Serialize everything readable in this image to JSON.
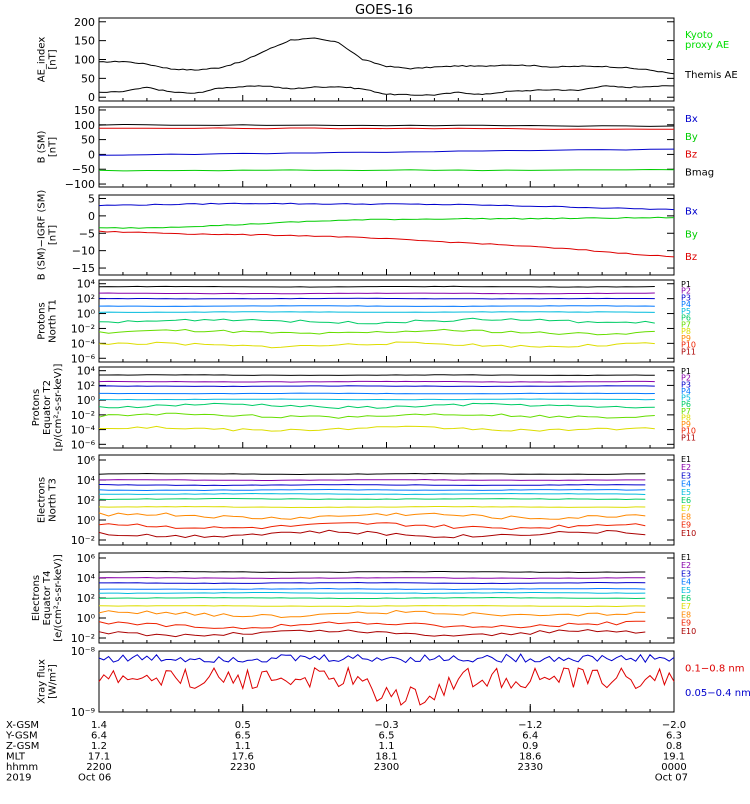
{
  "title": "GOES-16",
  "panels": [
    {
      "id": "ae",
      "ylabel": [
        "AE_index",
        "[nT]"
      ],
      "scale": "linear",
      "ylim": [
        -10,
        210
      ],
      "ticks": [
        {
          "v": 200,
          "t": "200"
        },
        {
          "v": 150,
          "t": "150"
        },
        {
          "v": 100,
          "t": "100"
        },
        {
          "v": 50,
          "t": "50"
        },
        {
          "v": 0,
          "t": "0"
        }
      ],
      "legend": [
        {
          "text": "Kyoto",
          "color": "#00dd00"
        },
        {
          "text": "proxy AE",
          "color": "#00dd00"
        },
        {
          "text": "Themis AE",
          "color": "#000000"
        }
      ]
    },
    {
      "id": "bsm",
      "ylabel": [
        "B (SM)",
        "[nT]"
      ],
      "scale": "linear",
      "ylim": [
        -110,
        160
      ],
      "ticks": [
        {
          "v": 150,
          "t": "150"
        },
        {
          "v": 100,
          "t": "100"
        },
        {
          "v": 50,
          "t": "50"
        },
        {
          "v": 0,
          "t": "0"
        },
        {
          "v": -50,
          "t": "−50"
        },
        {
          "v": -100,
          "t": "−100"
        }
      ],
      "legend": [
        {
          "text": "Bx",
          "color": "#0000cc"
        },
        {
          "text": "By",
          "color": "#00cc00"
        },
        {
          "text": "Bz",
          "color": "#dd0000"
        },
        {
          "text": "Bmag",
          "color": "#000000"
        }
      ]
    },
    {
      "id": "bigrf",
      "ylabel": [
        "B (SM)−IGRF (SM)",
        "[nT]"
      ],
      "scale": "linear",
      "ylim": [
        -17,
        6
      ],
      "ticks": [
        {
          "v": 5,
          "t": "5"
        },
        {
          "v": 0,
          "t": "0"
        },
        {
          "v": -5,
          "t": "−5"
        },
        {
          "v": -10,
          "t": "−10"
        },
        {
          "v": -15,
          "t": "−15"
        }
      ],
      "legend": [
        {
          "text": "Bx",
          "color": "#0000cc"
        },
        {
          "text": "By",
          "color": "#00cc00"
        },
        {
          "text": "Bz",
          "color": "#dd0000"
        }
      ]
    },
    {
      "id": "pnorth",
      "ylabel": [
        "Protons",
        "North T1"
      ],
      "scale": "log",
      "ylim": [
        -6.5,
        4.5
      ],
      "ticks": [
        {
          "v": 4,
          "t": "10⁴"
        },
        {
          "v": 2,
          "t": "10²"
        },
        {
          "v": 0,
          "t": "10⁰"
        },
        {
          "v": -2,
          "t": "10⁻²"
        },
        {
          "v": -4,
          "t": "10⁻⁴"
        },
        {
          "v": -6,
          "t": "10⁻⁶"
        }
      ],
      "legend": [
        {
          "text": "P1",
          "color": "#000000"
        },
        {
          "text": "P2",
          "color": "#8800aa"
        },
        {
          "text": "P3",
          "color": "#0000cc"
        },
        {
          "text": "P4",
          "color": "#0077ff"
        },
        {
          "text": "P5",
          "color": "#00bbdd"
        },
        {
          "text": "P6",
          "color": "#00cc66"
        },
        {
          "text": "P7",
          "color": "#66dd00"
        },
        {
          "text": "P8",
          "color": "#dddd00"
        },
        {
          "text": "P9",
          "color": "#ff8800"
        },
        {
          "text": "P10",
          "color": "#ee2200"
        },
        {
          "text": "P11",
          "color": "#aa0000"
        }
      ]
    },
    {
      "id": "peq",
      "ylabel": [
        "Protons",
        "Equator T2",
        "[p/(cm²-s-sr-keV)]"
      ],
      "scale": "log",
      "ylim": [
        -6.5,
        4.5
      ],
      "ticks": [
        {
          "v": 4,
          "t": "10⁴"
        },
        {
          "v": 2,
          "t": "10²"
        },
        {
          "v": 0,
          "t": "10⁰"
        },
        {
          "v": -2,
          "t": "10⁻²"
        },
        {
          "v": -4,
          "t": "10⁻⁴"
        },
        {
          "v": -6,
          "t": "10⁻⁶"
        }
      ],
      "legend": [
        {
          "text": "P1",
          "color": "#000000"
        },
        {
          "text": "P2",
          "color": "#8800aa"
        },
        {
          "text": "P3",
          "color": "#0000cc"
        },
        {
          "text": "P4",
          "color": "#0077ff"
        },
        {
          "text": "P5",
          "color": "#00bbdd"
        },
        {
          "text": "P6",
          "color": "#00cc66"
        },
        {
          "text": "P7",
          "color": "#66dd00"
        },
        {
          "text": "P8",
          "color": "#dddd00"
        },
        {
          "text": "P9",
          "color": "#ff8800"
        },
        {
          "text": "P10",
          "color": "#ee2200"
        },
        {
          "text": "P11",
          "color": "#aa0000"
        }
      ]
    },
    {
      "id": "enorth",
      "ylabel": [
        "Electrons",
        "North T3"
      ],
      "scale": "log",
      "ylim": [
        -2.5,
        6.5
      ],
      "ticks": [
        {
          "v": 6,
          "t": "10⁶"
        },
        {
          "v": 4,
          "t": "10⁴"
        },
        {
          "v": 2,
          "t": "10²"
        },
        {
          "v": 0,
          "t": "10⁰"
        },
        {
          "v": -2,
          "t": "10⁻²"
        }
      ],
      "legend": [
        {
          "text": "E1",
          "color": "#000000"
        },
        {
          "text": "E2",
          "color": "#8800aa"
        },
        {
          "text": "E3",
          "color": "#0000cc"
        },
        {
          "text": "E4",
          "color": "#0077ff"
        },
        {
          "text": "E5",
          "color": "#00bbdd"
        },
        {
          "text": "E6",
          "color": "#00cc66"
        },
        {
          "text": "E7",
          "color": "#dddd00"
        },
        {
          "text": "E8",
          "color": "#ff8800"
        },
        {
          "text": "E9",
          "color": "#ee2200"
        },
        {
          "text": "E10",
          "color": "#aa0000"
        }
      ]
    },
    {
      "id": "eeq",
      "ylabel": [
        "Electrons",
        "Equator T4",
        "[e/(cm²-s-sr-keV)]"
      ],
      "scale": "log",
      "ylim": [
        -2.5,
        6.5
      ],
      "ticks": [
        {
          "v": 6,
          "t": "10⁶"
        },
        {
          "v": 4,
          "t": "10⁴"
        },
        {
          "v": 2,
          "t": "10²"
        },
        {
          "v": 0,
          "t": "10⁰"
        },
        {
          "v": -2,
          "t": "10⁻²"
        }
      ],
      "legend": [
        {
          "text": "E1",
          "color": "#000000"
        },
        {
          "text": "E2",
          "color": "#8800aa"
        },
        {
          "text": "E3",
          "color": "#0000cc"
        },
        {
          "text": "E4",
          "color": "#0077ff"
        },
        {
          "text": "E5",
          "color": "#00bbdd"
        },
        {
          "text": "E6",
          "color": "#00cc66"
        },
        {
          "text": "E7",
          "color": "#dddd00"
        },
        {
          "text": "E8",
          "color": "#ff8800"
        },
        {
          "text": "E9",
          "color": "#ee2200"
        },
        {
          "text": "E10",
          "color": "#aa0000"
        }
      ]
    },
    {
      "id": "xray",
      "ylabel": [
        "Xray flux",
        "[W/m²]"
      ],
      "scale": "log",
      "ylim": [
        -9.0,
        -8.0
      ],
      "ticks": [
        {
          "v": -8,
          "t": "10⁻⁸"
        },
        {
          "v": -9,
          "t": "10⁻⁹"
        }
      ],
      "legend": [
        {
          "text": "0.1−0.8 nm",
          "color": "#dd0000"
        },
        {
          "text": "0.05−0.4 nm",
          "color": "#0000cc"
        }
      ]
    }
  ],
  "xaxis": {
    "labels": [
      "X-GSM",
      "Y-GSM",
      "Z-GSM",
      "MLT",
      "hhmm",
      "2019"
    ],
    "ticks": [
      {
        "t": 0,
        "vals": [
          "1.4",
          "6.4",
          "1.2",
          "17.1",
          "2200",
          "Oct 06"
        ]
      },
      {
        "t": 30,
        "vals": [
          "0.5",
          "6.5",
          "1.1",
          "17.6",
          "2230",
          ""
        ]
      },
      {
        "t": 60,
        "vals": [
          "−0.3",
          "6.5",
          "1.1",
          "18.1",
          "2300",
          ""
        ]
      },
      {
        "t": 90,
        "vals": [
          "−1.2",
          "6.4",
          "0.9",
          "18.6",
          "2330",
          ""
        ]
      },
      {
        "t": 120,
        "vals": [
          "−2.0",
          "6.3",
          "0.8",
          "19.1",
          "0000",
          "Oct 07"
        ]
      }
    ]
  },
  "chart_data": [
    {
      "type": "line",
      "title": "GOES-16",
      "ylabel": "AE_index [nT]",
      "x": [
        0,
        5,
        10,
        15,
        20,
        25,
        30,
        35,
        40,
        45,
        50,
        55,
        60,
        65,
        70,
        75,
        80,
        85,
        90,
        95,
        100,
        105,
        110,
        115,
        120
      ],
      "series": [
        {
          "name": "Themis AE",
          "values": [
            93,
            95,
            88,
            75,
            72,
            78,
            95,
            125,
            152,
            156,
            145,
            100,
            82,
            76,
            80,
            83,
            82,
            86,
            84,
            80,
            82,
            82,
            78,
            72,
            62
          ]
        },
        {
          "name": "Kyoto proxy AE",
          "values": [
            12,
            15,
            26,
            14,
            10,
            24,
            28,
            30,
            22,
            27,
            28,
            22,
            8,
            6,
            6,
            13,
            7,
            15,
            18,
            20,
            18,
            30,
            26,
            29,
            30
          ]
        }
      ],
      "ylim": [
        -10,
        210
      ]
    },
    {
      "type": "line",
      "ylabel": "B (SM) [nT]",
      "x": [
        0,
        30,
        60,
        90,
        120
      ],
      "series": [
        {
          "name": "Bmag",
          "values": [
            100,
            99,
            98,
            97,
            96
          ]
        },
        {
          "name": "Bz",
          "values": [
            88,
            88,
            88,
            86,
            85
          ]
        },
        {
          "name": "Bx",
          "values": [
            -3,
            3,
            8,
            13,
            18
          ]
        },
        {
          "name": "By",
          "values": [
            -55,
            -54,
            -53,
            -53,
            -52
          ]
        }
      ],
      "ylim": [
        -110,
        160
      ]
    },
    {
      "type": "line",
      "ylabel": "B (SM)−IGRF (SM) [nT]",
      "x": [
        0,
        10,
        20,
        30,
        40,
        50,
        60,
        70,
        80,
        90,
        100,
        110,
        120
      ],
      "series": [
        {
          "name": "Bx",
          "values": [
            3,
            3.2,
            3.4,
            3.6,
            3.5,
            3.4,
            3.4,
            3.3,
            3.1,
            2.8,
            2.5,
            2.1,
            1.8
          ]
        },
        {
          "name": "By",
          "values": [
            -3.5,
            -3.4,
            -3.0,
            -2.5,
            -1.8,
            -1.3,
            -1.0,
            -0.9,
            -0.8,
            -0.8,
            -0.7,
            -0.6,
            -0.5
          ]
        },
        {
          "name": "Bz",
          "values": [
            -4.5,
            -4.8,
            -5.2,
            -5.4,
            -5.6,
            -6.0,
            -6.6,
            -7.3,
            -8.0,
            -8.8,
            -9.7,
            -10.8,
            -11.8
          ]
        }
      ],
      "ylim": [
        -17,
        6
      ]
    },
    {
      "type": "line",
      "ylabel": "Protons North T1",
      "yscale": "log",
      "series": [
        {
          "name": "P1",
          "log10": 3.6
        },
        {
          "name": "P2",
          "log10": 2.7
        },
        {
          "name": "P3",
          "log10": 2.0
        },
        {
          "name": "P4",
          "log10": 1.0
        },
        {
          "name": "P5",
          "log10": 0.2
        },
        {
          "name": "P6",
          "log10": -1.0
        },
        {
          "name": "P7",
          "log10": -2.5
        },
        {
          "name": "P8",
          "log10": -4.2
        }
      ]
    },
    {
      "type": "line",
      "ylabel": "Protons Equator T2 [p/(cm²-s-sr-keV)]",
      "yscale": "log",
      "series": [
        {
          "name": "P1",
          "log10": 3.4
        },
        {
          "name": "P2",
          "log10": 2.5
        },
        {
          "name": "P3",
          "log10": 1.9
        },
        {
          "name": "P4",
          "log10": 0.9
        },
        {
          "name": "P5",
          "log10": 0.1
        },
        {
          "name": "P6",
          "log10": -0.8
        },
        {
          "name": "P7",
          "log10": -2.1
        },
        {
          "name": "P8",
          "log10": -3.9
        }
      ]
    },
    {
      "type": "line",
      "ylabel": "Electrons North T3",
      "yscale": "log",
      "series": [
        {
          "name": "E1",
          "log10": 4.6
        },
        {
          "name": "E2",
          "log10": 4.0
        },
        {
          "name": "E3",
          "log10": 3.5
        },
        {
          "name": "E4",
          "log10": 3.0
        },
        {
          "name": "E5",
          "log10": 2.6
        },
        {
          "name": "E6",
          "log10": 2.1
        },
        {
          "name": "E7",
          "log10": 1.3
        },
        {
          "name": "E8",
          "log10": 0.4
        },
        {
          "name": "E9",
          "log10": -0.6
        },
        {
          "name": "E10",
          "log10": -1.4
        }
      ]
    },
    {
      "type": "line",
      "ylabel": "Electrons Equator T4 [e/(cm²-s-sr-keV)]",
      "yscale": "log",
      "series": [
        {
          "name": "E1",
          "log10": 4.6
        },
        {
          "name": "E2",
          "log10": 4.0
        },
        {
          "name": "E3",
          "log10": 3.5
        },
        {
          "name": "E4",
          "log10": 2.9
        },
        {
          "name": "E5",
          "log10": 2.5
        },
        {
          "name": "E6",
          "log10": 2.0
        },
        {
          "name": "E7",
          "log10": 1.2
        },
        {
          "name": "E8",
          "log10": 0.4
        },
        {
          "name": "E9",
          "log10": -0.7
        },
        {
          "name": "E10",
          "log10": -1.5
        }
      ]
    },
    {
      "type": "line",
      "ylabel": "Xray flux [W/m²]",
      "yscale": "log",
      "series": [
        {
          "name": "0.05−0.4 nm",
          "log10_mean": -8.15
        },
        {
          "name": "0.1−0.8 nm",
          "log10_mean": -8.5
        }
      ],
      "ylim": [
        -9.0,
        -8.0
      ]
    }
  ]
}
